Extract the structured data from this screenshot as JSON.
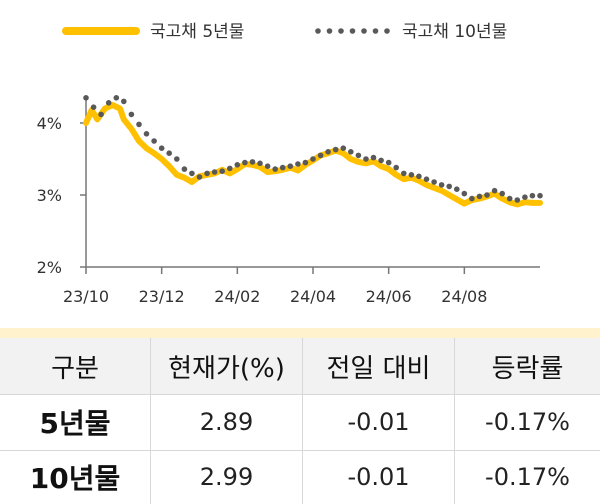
{
  "legend": {
    "series_5y": "국고채 5년물",
    "series_10y": "국고채 10년물"
  },
  "colors": {
    "series_5y": "#FFC000",
    "series_10y": "#595959",
    "axis": "#777777",
    "table_header_bg": "#F2F2F2",
    "table_top_band": "#FFF2CC"
  },
  "chart_data": {
    "type": "line",
    "y_ticks": [
      "2%",
      "3%",
      "4%"
    ],
    "ylim": [
      2,
      4.5
    ],
    "x_ticks": [
      "23/10",
      "23/12",
      "24/02",
      "24/04",
      "24/06",
      "24/08"
    ],
    "x_tick_months": [
      0,
      2,
      4,
      6,
      8,
      10
    ],
    "series": [
      {
        "name": "국고채 5년물",
        "style": "solid-thick",
        "x": [
          0.0,
          0.15,
          0.3,
          0.5,
          0.7,
          0.9,
          1.0,
          1.2,
          1.4,
          1.6,
          1.8,
          2.0,
          2.2,
          2.4,
          2.6,
          2.8,
          3.0,
          3.2,
          3.4,
          3.6,
          3.8,
          4.0,
          4.2,
          4.4,
          4.6,
          4.8,
          5.0,
          5.2,
          5.4,
          5.6,
          5.8,
          6.0,
          6.2,
          6.4,
          6.6,
          6.8,
          7.0,
          7.2,
          7.4,
          7.6,
          7.8,
          8.0,
          8.2,
          8.4,
          8.6,
          8.8,
          9.0,
          9.2,
          9.4,
          9.6,
          10.0,
          10.2,
          10.4,
          10.6,
          10.8,
          11.0,
          11.2,
          11.4,
          11.6,
          11.8,
          12.0
        ],
        "values": [
          4.0,
          4.18,
          4.05,
          4.2,
          4.25,
          4.2,
          4.05,
          3.92,
          3.75,
          3.65,
          3.58,
          3.5,
          3.4,
          3.28,
          3.24,
          3.18,
          3.26,
          3.28,
          3.3,
          3.35,
          3.3,
          3.36,
          3.43,
          3.42,
          3.39,
          3.32,
          3.33,
          3.35,
          3.38,
          3.34,
          3.42,
          3.48,
          3.55,
          3.58,
          3.62,
          3.58,
          3.5,
          3.46,
          3.44,
          3.47,
          3.4,
          3.36,
          3.28,
          3.22,
          3.24,
          3.2,
          3.14,
          3.1,
          3.06,
          3.0,
          2.88,
          2.93,
          2.95,
          2.98,
          3.02,
          2.95,
          2.9,
          2.87,
          2.9,
          2.89,
          2.89
        ]
      },
      {
        "name": "국고채 10년물",
        "style": "dotted",
        "x": [
          0.0,
          0.2,
          0.4,
          0.6,
          0.8,
          1.0,
          1.2,
          1.4,
          1.6,
          1.8,
          2.0,
          2.2,
          2.4,
          2.6,
          2.8,
          3.0,
          3.2,
          3.4,
          3.6,
          3.8,
          4.0,
          4.2,
          4.4,
          4.6,
          4.8,
          5.0,
          5.2,
          5.4,
          5.6,
          5.8,
          6.0,
          6.2,
          6.4,
          6.6,
          6.8,
          7.0,
          7.2,
          7.4,
          7.6,
          7.8,
          8.0,
          8.2,
          8.4,
          8.6,
          8.8,
          9.0,
          9.2,
          9.4,
          9.6,
          9.8,
          10.0,
          10.2,
          10.4,
          10.6,
          10.8,
          11.0,
          11.2,
          11.4,
          11.6,
          11.8,
          12.0
        ],
        "values": [
          4.35,
          4.22,
          4.12,
          4.28,
          4.35,
          4.3,
          4.12,
          3.98,
          3.85,
          3.75,
          3.65,
          3.58,
          3.5,
          3.36,
          3.3,
          3.25,
          3.3,
          3.32,
          3.33,
          3.37,
          3.42,
          3.45,
          3.46,
          3.44,
          3.4,
          3.36,
          3.38,
          3.4,
          3.43,
          3.45,
          3.5,
          3.55,
          3.6,
          3.63,
          3.65,
          3.6,
          3.55,
          3.5,
          3.52,
          3.48,
          3.45,
          3.38,
          3.3,
          3.28,
          3.26,
          3.22,
          3.18,
          3.14,
          3.12,
          3.08,
          3.02,
          2.95,
          2.98,
          3.0,
          3.06,
          3.02,
          2.95,
          2.93,
          2.97,
          2.99,
          2.99
        ]
      }
    ]
  },
  "table": {
    "headers": [
      "구분",
      "현재가(%)",
      "전일 대비",
      "등락률"
    ],
    "rows": [
      {
        "label": "5년물",
        "price": "2.89",
        "change": "-0.01",
        "rate": "-0.17%"
      },
      {
        "label": "10년물",
        "price": "2.99",
        "change": "-0.01",
        "rate": "-0.17%"
      }
    ]
  }
}
